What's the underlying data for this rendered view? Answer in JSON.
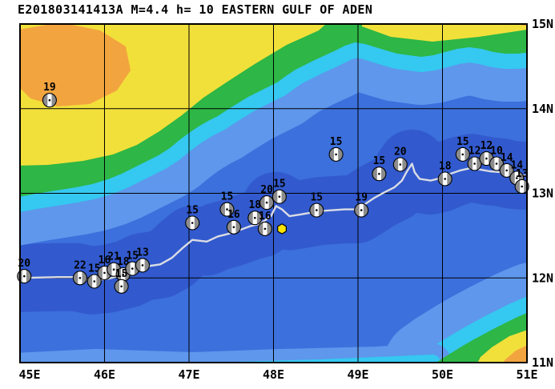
{
  "title": "E201803141413A M=4.4 h= 10 EASTERN GULF OF ADEN",
  "map": {
    "lon_ticks": [
      "45E",
      "46E",
      "47E",
      "48E",
      "49E",
      "50E",
      "51E"
    ],
    "lat_ticks": [
      "15N",
      "14N",
      "13N",
      "12N",
      "11N"
    ],
    "lon_range": [
      45,
      51
    ],
    "lat_range": [
      11,
      15
    ],
    "grid": true
  },
  "palette": {
    "land_low": "#2EB646",
    "land_mid": "#F2E03A",
    "land_high": "#F2A43F",
    "sea_shallow": "#35C8F0",
    "sea_light": "#5E97EC",
    "sea_mid": "#3C70DC",
    "sea_deep": "#3158CC",
    "ridge_line": "#E4E4E6",
    "ball_fill": "#FFFFFF",
    "ball_shade": "#8C8C8C",
    "event_marker": "#FFE400"
  },
  "event_marker": {
    "lon": 48.1,
    "lat": 12.58,
    "shape": "hexagon"
  },
  "ridge_axis": [
    [
      45.0,
      12.0
    ],
    [
      45.45,
      12.01
    ],
    [
      45.66,
      12.01
    ],
    [
      45.85,
      11.97
    ],
    [
      46.04,
      11.99
    ],
    [
      46.28,
      12.05
    ],
    [
      46.45,
      12.13
    ],
    [
      46.66,
      12.16
    ],
    [
      46.8,
      12.24
    ],
    [
      46.92,
      12.35
    ],
    [
      47.04,
      12.45
    ],
    [
      47.21,
      12.43
    ],
    [
      47.34,
      12.49
    ],
    [
      47.46,
      12.52
    ],
    [
      47.61,
      12.57
    ],
    [
      47.72,
      12.61
    ],
    [
      47.84,
      12.64
    ],
    [
      47.97,
      12.73
    ],
    [
      48.03,
      12.85
    ],
    [
      48.1,
      12.81
    ],
    [
      48.19,
      12.73
    ],
    [
      48.32,
      12.75
    ],
    [
      48.55,
      12.79
    ],
    [
      48.84,
      12.81
    ],
    [
      48.98,
      12.81
    ],
    [
      49.08,
      12.87
    ],
    [
      49.2,
      12.95
    ],
    [
      49.31,
      13.01
    ],
    [
      49.43,
      13.07
    ],
    [
      49.52,
      13.15
    ],
    [
      49.58,
      13.26
    ],
    [
      49.64,
      13.35
    ],
    [
      49.67,
      13.25
    ],
    [
      49.73,
      13.17
    ],
    [
      49.86,
      13.15
    ],
    [
      49.98,
      13.18
    ],
    [
      50.09,
      13.23
    ],
    [
      50.21,
      13.27
    ],
    [
      50.34,
      13.3
    ],
    [
      50.45,
      13.28
    ],
    [
      50.56,
      13.26
    ],
    [
      50.69,
      13.25
    ],
    [
      50.81,
      13.22
    ],
    [
      50.92,
      13.21
    ],
    [
      51.0,
      13.21
    ]
  ],
  "beachballs": [
    {
      "lon": 45.35,
      "lat": 14.1,
      "depth": "19"
    },
    {
      "lon": 48.74,
      "lat": 13.46,
      "depth": "15"
    },
    {
      "lon": 49.25,
      "lat": 13.23,
      "depth": "15"
    },
    {
      "lon": 49.5,
      "lat": 13.34,
      "depth": "20"
    },
    {
      "lon": 50.03,
      "lat": 13.17,
      "depth": "18"
    },
    {
      "lon": 50.24,
      "lat": 13.46,
      "depth": "15"
    },
    {
      "lon": 50.38,
      "lat": 13.35,
      "depth": "12"
    },
    {
      "lon": 50.52,
      "lat": 13.41,
      "depth": "12"
    },
    {
      "lon": 50.64,
      "lat": 13.35,
      "depth": "10"
    },
    {
      "lon": 50.76,
      "lat": 13.27,
      "depth": "14"
    },
    {
      "lon": 50.88,
      "lat": 13.18,
      "depth": "14"
    },
    {
      "lon": 50.94,
      "lat": 13.08,
      "depth": "13"
    },
    {
      "lon": 49.04,
      "lat": 12.8,
      "depth": "19"
    },
    {
      "lon": 48.51,
      "lat": 12.8,
      "depth": "15"
    },
    {
      "lon": 48.07,
      "lat": 12.96,
      "depth": "15"
    },
    {
      "lon": 47.92,
      "lat": 12.89,
      "depth": "20"
    },
    {
      "lon": 47.78,
      "lat": 12.71,
      "depth": "18"
    },
    {
      "lon": 47.9,
      "lat": 12.58,
      "depth": "16"
    },
    {
      "lon": 47.45,
      "lat": 12.81,
      "depth": "15"
    },
    {
      "lon": 47.53,
      "lat": 12.6,
      "depth": "16"
    },
    {
      "lon": 47.04,
      "lat": 12.65,
      "depth": "15"
    },
    {
      "lon": 45.05,
      "lat": 12.02,
      "depth": "20"
    },
    {
      "lon": 45.71,
      "lat": 12.0,
      "depth": "22"
    },
    {
      "lon": 45.88,
      "lat": 11.96,
      "depth": "15"
    },
    {
      "lon": 46.0,
      "lat": 12.06,
      "depth": "16"
    },
    {
      "lon": 46.11,
      "lat": 12.1,
      "depth": "21"
    },
    {
      "lon": 46.22,
      "lat": 12.04,
      "depth": "18"
    },
    {
      "lon": 46.33,
      "lat": 12.11,
      "depth": "15"
    },
    {
      "lon": 46.45,
      "lat": 12.15,
      "depth": "13"
    },
    {
      "lon": 46.2,
      "lat": 11.9,
      "depth": "15"
    }
  ]
}
